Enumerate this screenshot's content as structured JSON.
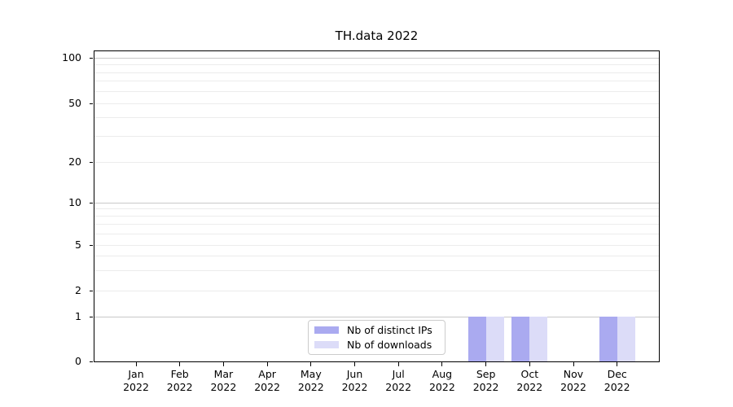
{
  "figure": {
    "background": "#ffffff"
  },
  "chart_data": {
    "type": "bar",
    "title": "TH.data 2022",
    "x_tick_labels": [
      "Jan\n2022",
      "Feb\n2022",
      "Mar\n2022",
      "Apr\n2022",
      "May\n2022",
      "Jun\n2022",
      "Jul\n2022",
      "Aug\n2022",
      "Sep\n2022",
      "Oct\n2022",
      "Nov\n2022",
      "Dec\n2022"
    ],
    "y_tick_labels": [
      "100",
      "50",
      "20",
      "10",
      "5",
      "2",
      "1",
      "0"
    ],
    "y_scale": "log-like with linear segment to 0",
    "ylim": [
      0,
      115
    ],
    "series": [
      {
        "name": "Nb of distinct IPs",
        "color": "#aaaaf0",
        "values": [
          0,
          0,
          0,
          0,
          0,
          0,
          0,
          0,
          1,
          1,
          0,
          1
        ]
      },
      {
        "name": "Nb of downloads",
        "color": "#dcdcf8",
        "values": [
          0,
          0,
          0,
          0,
          0,
          0,
          0,
          0,
          1,
          1,
          0,
          1
        ]
      }
    ],
    "legend": {
      "position": "lower center",
      "border_color": "#cccccc",
      "background": "#ffffff"
    },
    "grid": {
      "major_values": [
        100,
        10,
        1
      ],
      "minor_values": [
        90,
        80,
        70,
        60,
        50,
        40,
        30,
        20,
        9,
        8,
        7,
        6,
        5,
        4,
        3,
        2
      ],
      "major_color": "#c8c8c8",
      "minor_color": "#ececec"
    },
    "axis_color": "#000000"
  }
}
